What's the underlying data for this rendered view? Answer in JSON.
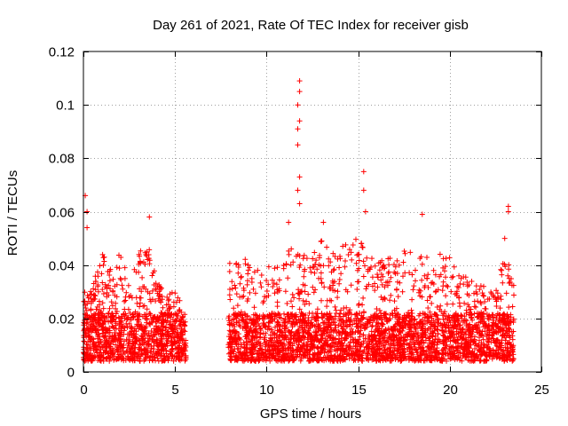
{
  "chart_data": {
    "type": "scatter",
    "title": "Day 261 of 2021, Rate Of TEC Index for receiver gisb",
    "xlabel": "GPS time / hours",
    "ylabel": "ROTI / TECUs",
    "xlim": [
      0,
      25
    ],
    "ylim": [
      0,
      0.12
    ],
    "x_ticks": [
      0,
      5,
      10,
      15,
      20,
      25
    ],
    "y_ticks": [
      0,
      0.02,
      0.04,
      0.06,
      0.08,
      0.1,
      0.12
    ],
    "x_tick_labels": [
      "0",
      "5",
      "10",
      "15",
      "20",
      "25"
    ],
    "y_tick_labels": [
      "0",
      "0.02",
      "0.04",
      "0.06",
      "0.08",
      "0.1",
      "0.12"
    ],
    "grid": true,
    "marker": "+",
    "series_color": "#ff0000",
    "data_gaps_hours": [
      [
        5.6,
        7.9
      ]
    ],
    "notable_points": [
      {
        "x": 0.1,
        "y": 0.066
      },
      {
        "x": 0.2,
        "y": 0.06
      },
      {
        "x": 0.2,
        "y": 0.054
      },
      {
        "x": 3.6,
        "y": 0.058
      },
      {
        "x": 11.2,
        "y": 0.056
      },
      {
        "x": 11.8,
        "y": 0.109
      },
      {
        "x": 11.8,
        "y": 0.105
      },
      {
        "x": 11.7,
        "y": 0.1
      },
      {
        "x": 11.8,
        "y": 0.094
      },
      {
        "x": 11.7,
        "y": 0.091
      },
      {
        "x": 11.7,
        "y": 0.085
      },
      {
        "x": 11.8,
        "y": 0.073
      },
      {
        "x": 11.7,
        "y": 0.068
      },
      {
        "x": 11.8,
        "y": 0.063
      },
      {
        "x": 13.1,
        "y": 0.056
      },
      {
        "x": 15.3,
        "y": 0.075
      },
      {
        "x": 15.3,
        "y": 0.068
      },
      {
        "x": 15.4,
        "y": 0.06
      },
      {
        "x": 18.5,
        "y": 0.059
      },
      {
        "x": 23.2,
        "y": 0.062
      },
      {
        "x": 23.2,
        "y": 0.06
      },
      {
        "x": 23.0,
        "y": 0.05
      }
    ],
    "envelope_upper": [
      [
        0.0,
        0.03
      ],
      [
        0.5,
        0.032
      ],
      [
        1.0,
        0.045
      ],
      [
        1.5,
        0.038
      ],
      [
        2.0,
        0.046
      ],
      [
        2.5,
        0.033
      ],
      [
        3.0,
        0.045
      ],
      [
        3.5,
        0.05
      ],
      [
        4.0,
        0.035
      ],
      [
        4.5,
        0.03
      ],
      [
        5.0,
        0.03
      ],
      [
        5.6,
        0.025
      ],
      [
        7.9,
        0.04
      ],
      [
        8.5,
        0.045
      ],
      [
        9.0,
        0.042
      ],
      [
        9.5,
        0.038
      ],
      [
        10.0,
        0.04
      ],
      [
        10.5,
        0.042
      ],
      [
        11.0,
        0.045
      ],
      [
        11.5,
        0.05
      ],
      [
        12.0,
        0.045
      ],
      [
        12.5,
        0.048
      ],
      [
        13.0,
        0.05
      ],
      [
        13.5,
        0.046
      ],
      [
        14.0,
        0.045
      ],
      [
        14.5,
        0.052
      ],
      [
        15.0,
        0.05
      ],
      [
        15.5,
        0.045
      ],
      [
        16.0,
        0.04
      ],
      [
        16.5,
        0.045
      ],
      [
        17.0,
        0.04
      ],
      [
        17.5,
        0.05
      ],
      [
        18.0,
        0.045
      ],
      [
        18.5,
        0.047
      ],
      [
        19.0,
        0.04
      ],
      [
        19.5,
        0.045
      ],
      [
        20.0,
        0.043
      ],
      [
        20.5,
        0.038
      ],
      [
        21.0,
        0.035
      ],
      [
        21.5,
        0.033
      ],
      [
        22.0,
        0.032
      ],
      [
        22.5,
        0.03
      ],
      [
        23.0,
        0.045
      ],
      [
        23.5,
        0.035
      ]
    ]
  }
}
